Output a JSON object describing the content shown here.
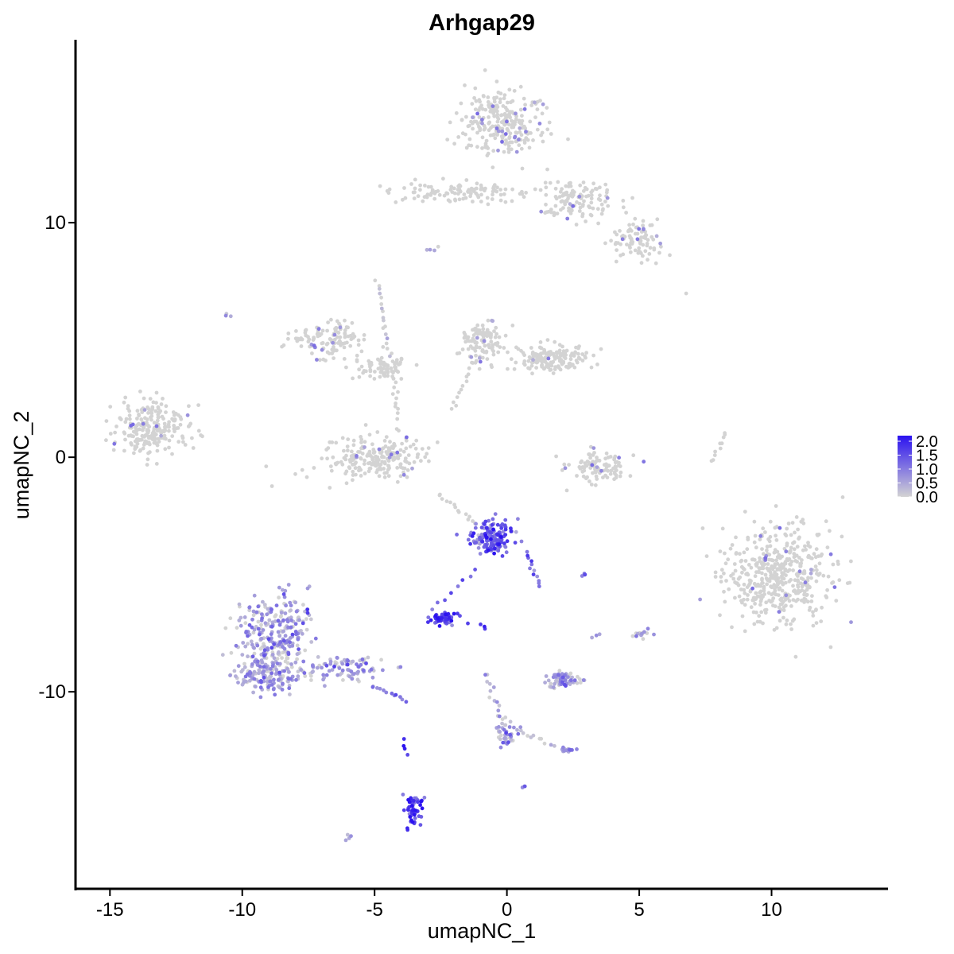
{
  "chart_data": {
    "type": "scatter",
    "title": "Arhgap29",
    "xlabel": "umapNC_1",
    "ylabel": "umapNC_2",
    "xlim": [
      -16.3,
      14.4
    ],
    "ylim": [
      -18.4,
      17.8
    ],
    "x_ticks": [
      -15,
      -10,
      -5,
      0,
      5,
      10
    ],
    "y_ticks": [
      -10,
      0,
      10
    ],
    "x_tick_labels": [
      "-15",
      "-10",
      "-5",
      "0",
      "5",
      "10"
    ],
    "y_tick_labels": [
      "-10",
      "0",
      "10"
    ],
    "grid": false,
    "color_scale": {
      "low": "#d3d3d3",
      "high": "#2b12f0",
      "min": 0.0,
      "max": 2.2,
      "breaks": [
        0.0,
        0.5,
        1.0,
        1.5,
        2.0
      ],
      "labels": [
        "0.0",
        "0.5",
        "1.0",
        "1.5",
        "2.0"
      ],
      "legend_position": "right"
    },
    "clusters": [
      {
        "cx": -0.1,
        "cy": 14.2,
        "rx": 1.5,
        "ry": 1.3,
        "n": 260,
        "expr": 0.03
      },
      {
        "cx": -1.8,
        "cy": 11.3,
        "rx": 2.3,
        "ry": 0.4,
        "n": 110,
        "expr": 0.0
      },
      {
        "cx": 2.6,
        "cy": 11.0,
        "rx": 1.6,
        "ry": 0.8,
        "n": 120,
        "expr": 0.02
      },
      {
        "cx": 4.9,
        "cy": 9.3,
        "rx": 0.9,
        "ry": 0.7,
        "n": 90,
        "expr": 0.01
      },
      {
        "cx": -13.5,
        "cy": 1.2,
        "rx": 1.3,
        "ry": 1.0,
        "n": 230,
        "expr": 0.02
      },
      {
        "cx": -6.8,
        "cy": 5.0,
        "rx": 1.2,
        "ry": 0.7,
        "n": 120,
        "expr": 0.04
      },
      {
        "cx": -4.7,
        "cy": 3.9,
        "rx": 0.9,
        "ry": 0.5,
        "n": 70,
        "expr": 0.0
      },
      {
        "cx": -5.0,
        "cy": 0.0,
        "rx": 1.8,
        "ry": 0.8,
        "n": 230,
        "expr": 0.02
      },
      {
        "cx": -1.0,
        "cy": 5.0,
        "rx": 0.7,
        "ry": 0.8,
        "n": 110,
        "expr": 0.02
      },
      {
        "cx": 1.7,
        "cy": 4.2,
        "rx": 1.3,
        "ry": 0.5,
        "n": 170,
        "expr": 0.01
      },
      {
        "cx": 3.5,
        "cy": -0.4,
        "rx": 1.1,
        "ry": 0.6,
        "n": 100,
        "expr": 0.02
      },
      {
        "cx": 10.3,
        "cy": -5.0,
        "rx": 1.8,
        "ry": 1.9,
        "n": 480,
        "expr": 0.01
      },
      {
        "cx": -0.6,
        "cy": -3.4,
        "rx": 0.8,
        "ry": 0.7,
        "n": 150,
        "expr": 1.3
      },
      {
        "cx": -2.4,
        "cy": -6.9,
        "rx": 0.45,
        "ry": 0.25,
        "n": 60,
        "expr": 1.6
      },
      {
        "cx": -8.8,
        "cy": -7.6,
        "rx": 1.2,
        "ry": 1.6,
        "n": 280,
        "expr": 0.5
      },
      {
        "cx": -9.0,
        "cy": -9.3,
        "rx": 1.1,
        "ry": 0.6,
        "n": 140,
        "expr": 0.45
      },
      {
        "cx": -6.0,
        "cy": -9.0,
        "rx": 1.3,
        "ry": 0.5,
        "n": 90,
        "expr": 0.55
      },
      {
        "cx": 2.2,
        "cy": -9.5,
        "rx": 0.6,
        "ry": 0.3,
        "n": 70,
        "expr": 0.5
      },
      {
        "cx": -3.5,
        "cy": -15.0,
        "rx": 0.3,
        "ry": 0.6,
        "n": 55,
        "expr": 1.7
      },
      {
        "cx": 0.0,
        "cy": -11.8,
        "rx": 0.4,
        "ry": 0.5,
        "n": 40,
        "expr": 0.55
      },
      {
        "cx": 2.3,
        "cy": -12.5,
        "rx": 0.3,
        "ry": 0.15,
        "n": 20,
        "expr": 0.5
      },
      {
        "cx": 5.1,
        "cy": -7.5,
        "rx": 0.3,
        "ry": 0.2,
        "n": 15,
        "expr": 0.1
      }
    ],
    "strands": [
      {
        "x1": -4.9,
        "y1": 7.5,
        "x2": -4.4,
        "y2": 4.3,
        "n": 18,
        "expr": 0.05
      },
      {
        "x1": -4.3,
        "y1": 3.5,
        "x2": -4.1,
        "y2": 1.7,
        "n": 12,
        "expr": 0.0
      },
      {
        "x1": -2.6,
        "y1": -1.6,
        "x2": -1.2,
        "y2": -2.8,
        "n": 14,
        "expr": 0.0
      },
      {
        "x1": -2.1,
        "y1": 2.0,
        "x2": -1.3,
        "y2": 4.0,
        "n": 12,
        "expr": 0.0
      },
      {
        "x1": 7.8,
        "y1": -0.2,
        "x2": 8.3,
        "y2": 1.1,
        "n": 10,
        "expr": 0.0
      },
      {
        "x1": -1.2,
        "y1": -4.8,
        "x2": -2.8,
        "y2": -6.5,
        "n": 8,
        "expr": 1.3
      },
      {
        "x1": 0.7,
        "y1": -4.1,
        "x2": 1.3,
        "y2": -5.5,
        "n": 12,
        "expr": 1.0
      },
      {
        "x1": -0.8,
        "y1": -9.2,
        "x2": -0.2,
        "y2": -11.3,
        "n": 14,
        "expr": 0.3
      },
      {
        "x1": 0.5,
        "y1": -11.7,
        "x2": 1.8,
        "y2": -12.3,
        "n": 10,
        "expr": 0.1
      },
      {
        "x1": -5.1,
        "y1": -9.7,
        "x2": -3.8,
        "y2": -10.4,
        "n": 12,
        "expr": 0.8
      },
      {
        "x1": -10.6,
        "y1": 6.1,
        "x2": -10.5,
        "y2": 6.0,
        "n": 3,
        "expr": 0.5
      },
      {
        "x1": -3.0,
        "y1": 8.8,
        "x2": -2.6,
        "y2": 9.0,
        "n": 4,
        "expr": 0.5
      },
      {
        "x1": -6.1,
        "y1": -16.3,
        "x2": -5.9,
        "y2": -16.1,
        "n": 4,
        "expr": 0.6
      },
      {
        "x1": -3.9,
        "y1": -12.0,
        "x2": -3.8,
        "y2": -12.7,
        "n": 4,
        "expr": 1.9
      },
      {
        "x1": 0.6,
        "y1": -14.0,
        "x2": 0.7,
        "y2": -14.1,
        "n": 3,
        "expr": 1.2
      },
      {
        "x1": 2.8,
        "y1": -5.0,
        "x2": 3.0,
        "y2": -5.0,
        "n": 4,
        "expr": 1.2
      },
      {
        "x1": -1.0,
        "y1": -7.1,
        "x2": -0.8,
        "y2": -7.3,
        "n": 3,
        "expr": 1.6
      },
      {
        "x1": 3.3,
        "y1": -7.7,
        "x2": 3.5,
        "y2": -7.6,
        "n": 3,
        "expr": 0.2
      },
      {
        "x1": 6.8,
        "y1": 7.0,
        "x2": 6.8,
        "y2": 7.0,
        "n": 1,
        "expr": 0.0
      }
    ]
  }
}
